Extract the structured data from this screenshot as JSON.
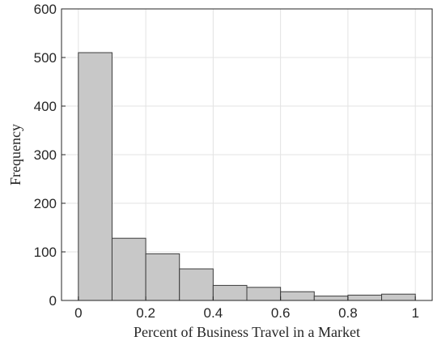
{
  "chart_data": {
    "type": "bar",
    "title": "",
    "xlabel": "Percent of Business Travel in a Market",
    "ylabel": "Frequency",
    "xlim": [
      -0.05,
      1.05
    ],
    "ylim": [
      0,
      600
    ],
    "xticks": [
      "0",
      "0.2",
      "0.4",
      "0.6",
      "0.8",
      "1"
    ],
    "yticks": [
      "0",
      "100",
      "200",
      "300",
      "400",
      "500",
      "600"
    ],
    "grid": true,
    "bin_edges": [
      0,
      0.1,
      0.2,
      0.3,
      0.4,
      0.5,
      0.6,
      0.7,
      0.8,
      0.9,
      1.0
    ],
    "values": [
      510,
      128,
      96,
      65,
      31,
      27,
      18,
      9,
      11,
      13
    ],
    "bar_color": "#c8c8c8",
    "edge_color": "#3c3c3c"
  }
}
